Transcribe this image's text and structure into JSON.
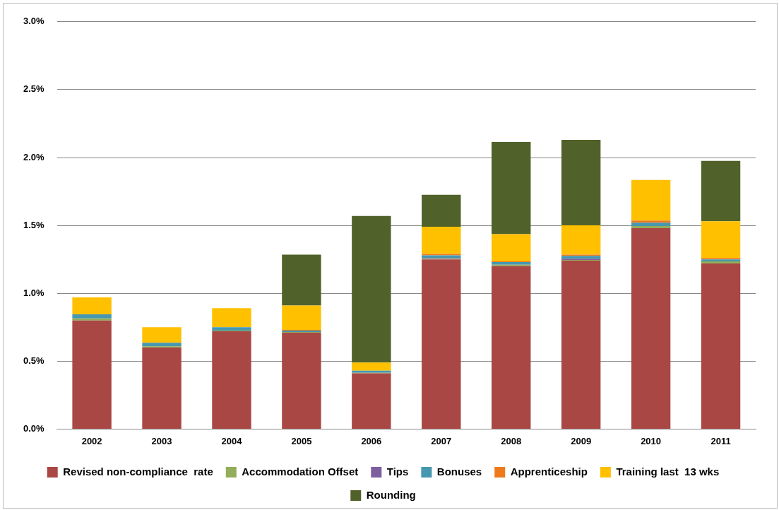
{
  "chart_data": {
    "type": "bar",
    "stacked": true,
    "categories": [
      "2002",
      "2003",
      "2004",
      "2005",
      "2006",
      "2007",
      "2008",
      "2009",
      "2010",
      "2011"
    ],
    "series": [
      {
        "name": "Revised non-compliance  rate",
        "color": "#a94744",
        "values": [
          0.8,
          0.6,
          0.72,
          0.71,
          0.41,
          1.25,
          1.2,
          1.24,
          1.48,
          1.22
        ]
      },
      {
        "name": "Accommodation Offset",
        "color": "#93ad5a",
        "values": [
          0.015,
          0.01,
          0.005,
          0.005,
          0.005,
          0.005,
          0.01,
          0.005,
          0.015,
          0.015
        ]
      },
      {
        "name": "Tips",
        "color": "#7d5fa0",
        "values": [
          0,
          0,
          0,
          0,
          0,
          0.005,
          0,
          0.01,
          0,
          0
        ]
      },
      {
        "name": "Bonuses",
        "color": "#4698b0",
        "values": [
          0.03,
          0.025,
          0.025,
          0.01,
          0.015,
          0.02,
          0.02,
          0.02,
          0.025,
          0.015
        ]
      },
      {
        "name": "Apprenticeship",
        "color": "#ee7a1c",
        "values": [
          0,
          0,
          0,
          0.005,
          0,
          0.01,
          0.005,
          0.01,
          0.015,
          0.01
        ]
      },
      {
        "name": "Training last  13 wks",
        "color": "#ffc000",
        "values": [
          0.125,
          0.115,
          0.14,
          0.18,
          0.06,
          0.2,
          0.2,
          0.215,
          0.3,
          0.27
        ]
      },
      {
        "name": "Rounding",
        "color": "#50622a",
        "values": [
          0,
          0,
          0,
          0.375,
          1.08,
          0.235,
          0.68,
          0.63,
          0,
          0.445
        ]
      }
    ],
    "ylim": [
      0,
      3
    ],
    "yticks": [
      {
        "value": 0,
        "label": "0.0%"
      },
      {
        "value": 0.5,
        "label": "0.5%"
      },
      {
        "value": 1,
        "label": "1.0%"
      },
      {
        "value": 1.5,
        "label": "1.5%"
      },
      {
        "value": 2,
        "label": "2.0%"
      },
      {
        "value": 2.5,
        "label": "2.5%"
      },
      {
        "value": 3,
        "label": "3.0%"
      }
    ],
    "grid": "y",
    "legend": "bottom"
  }
}
